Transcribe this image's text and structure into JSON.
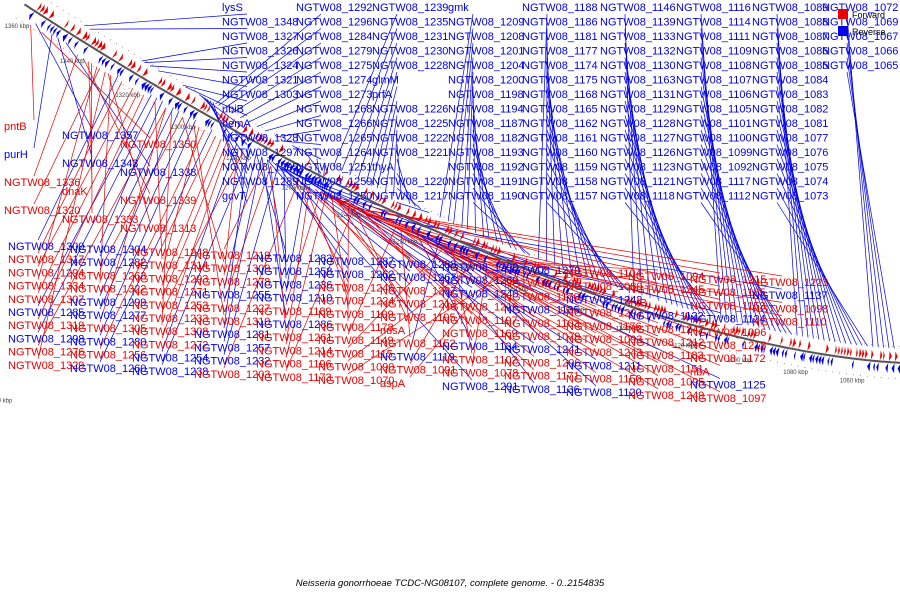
{
  "caption": "Neisseria gonorrhoeae TCDC-NG08107, complete genome. - 0..2154835",
  "legend": {
    "forward_label": "Forward",
    "reverse_label": "Reverse",
    "forward_color": "#e80000",
    "reverse_color": "#0000e8"
  },
  "colors": {
    "forward": "#e80000",
    "reverse": "#0000e8",
    "backbone": "#555555"
  },
  "map_range_kbp": [
    1040,
    1360
  ],
  "ticks": [
    "1360 kbp",
    "1340 kbp",
    "1320 kbp",
    "1300 kbp",
    "1280 kbp",
    "1260 kbp",
    "1240 kbp",
    "1220 kbp",
    "1200 kbp",
    "1180 kbp",
    "1160 kbp",
    "1140 kbp",
    "1120 kbp",
    "1100 kbp",
    "1080 kbp",
    "1060 kbp",
    "1040 kbp"
  ],
  "reverse_labels": [
    {
      "t": "lysS",
      "kbp": 1343
    },
    {
      "t": "NGTW08_1348",
      "kbp": 1341
    },
    {
      "t": "NGTW08_1327",
      "kbp": 1322
    },
    {
      "t": "NGTW08_1326",
      "kbp": 1321
    },
    {
      "t": "NGTW08_1324",
      "kbp": 1319
    },
    {
      "t": "NGTW08_1321",
      "kbp": 1316
    },
    {
      "t": "NGTW08_1303",
      "kbp": 1307
    },
    {
      "t": "ubiB",
      "kbp": 1306
    },
    {
      "t": "hemA",
      "kbp": 1301
    },
    {
      "t": "NGTW08_1328",
      "kbp": 1300
    },
    {
      "t": "NGTW08_1297",
      "kbp": 1299
    },
    {
      "t": "NGTW08_1295",
      "kbp": 1298
    },
    {
      "t": "NGTW08_1289",
      "kbp": 1297
    },
    {
      "t": "gcvT",
      "kbp": 1296
    },
    {
      "t": "NGTW08_1292",
      "kbp": 1295
    },
    {
      "t": "NGTW08_1296",
      "kbp": 1294
    },
    {
      "t": "NGTW08_1284",
      "kbp": 1292
    },
    {
      "t": "NGTW08_1279",
      "kbp": 1289
    },
    {
      "t": "NGTW08_1275",
      "kbp": 1286
    },
    {
      "t": "NGTW08_1274",
      "kbp": 1283
    },
    {
      "t": "NGTW08_1273",
      "kbp": 1280
    },
    {
      "t": "NGTW08_1268",
      "kbp": 1277
    },
    {
      "t": "NGTW08_1266",
      "kbp": 1273
    },
    {
      "t": "NGTW08_1265",
      "kbp": 1270
    },
    {
      "t": "NGTW08_1264",
      "kbp": 1267
    },
    {
      "t": "NGTW08_1251",
      "kbp": 1262
    },
    {
      "t": "NGTW08_1259",
      "kbp": 1258
    },
    {
      "t": "NGTW08_1250",
      "kbp": 1255
    },
    {
      "t": "NGTW08_1239",
      "kbp": 1252
    },
    {
      "t": "NGTW08_1235",
      "kbp": 1249
    },
    {
      "t": "NGTW08_1231",
      "kbp": 1246
    },
    {
      "t": "NGTW08_1230",
      "kbp": 1243
    },
    {
      "t": "NGTW08_1228",
      "kbp": 1240
    },
    {
      "t": "glmM",
      "kbp": 1238
    },
    {
      "t": "prfA",
      "kbp": 1236
    },
    {
      "t": "NGTW08_1226",
      "kbp": 1233
    },
    {
      "t": "NGTW08_1225",
      "kbp": 1230
    },
    {
      "t": "NGTW08_1222",
      "kbp": 1227
    },
    {
      "t": "NGTW08_1221",
      "kbp": 1224
    },
    {
      "t": "thyA",
      "kbp": 1222
    },
    {
      "t": "NGTW08_1220",
      "kbp": 1220
    },
    {
      "t": "NGTW08_1217",
      "kbp": 1217
    },
    {
      "t": "gmk",
      "kbp": 1213
    },
    {
      "t": "NGTW08_1209",
      "kbp": 1210
    },
    {
      "t": "NGTW08_1208",
      "kbp": 1208
    },
    {
      "t": "NGTW08_1201",
      "kbp": 1205
    },
    {
      "t": "NGTW08_1204",
      "kbp": 1203
    },
    {
      "t": "NGTW08_1200",
      "kbp": 1200
    },
    {
      "t": "NGTW08_1198",
      "kbp": 1197
    },
    {
      "t": "NGTW08_1194",
      "kbp": 1195
    },
    {
      "t": "NGTW08_1187",
      "kbp": 1192
    },
    {
      "t": "NGTW08_1182",
      "kbp": 1190
    },
    {
      "t": "NGTW08_1193",
      "kbp": 1187
    },
    {
      "t": "NGTW08_1192",
      "kbp": 1185
    },
    {
      "t": "NGTW08_1191",
      "kbp": 1182
    },
    {
      "t": "NGTW08_1190",
      "kbp": 1180
    },
    {
      "t": "NGTW08_1188",
      "kbp": 1177
    },
    {
      "t": "NGTW08_1186",
      "kbp": 1174
    },
    {
      "t": "NGTW08_1181",
      "kbp": 1171
    },
    {
      "t": "NGTW08_1177",
      "kbp": 1168
    },
    {
      "t": "NGTW08_1174",
      "kbp": 1165
    },
    {
      "t": "NGTW08_1175",
      "kbp": 1162
    },
    {
      "t": "NGTW08_1168",
      "kbp": 1159
    },
    {
      "t": "NGTW08_1165",
      "kbp": 1157
    },
    {
      "t": "NGTW08_1162",
      "kbp": 1155
    },
    {
      "t": "NGTW08_1161",
      "kbp": 1152
    },
    {
      "t": "NGTW08_1160",
      "kbp": 1150
    },
    {
      "t": "NGTW08_1159",
      "kbp": 1148
    },
    {
      "t": "NGTW08_1158",
      "kbp": 1146
    },
    {
      "t": "NGTW08_1157",
      "kbp": 1144
    },
    {
      "t": "NGTW08_1146",
      "kbp": 1142
    },
    {
      "t": "NGTW08_1139",
      "kbp": 1139
    },
    {
      "t": "NGTW08_1133",
      "kbp": 1136
    },
    {
      "t": "NGTW08_1132",
      "kbp": 1133
    },
    {
      "t": "NGTW08_1130",
      "kbp": 1130
    },
    {
      "t": "NGTW08_1163",
      "kbp": 1128
    },
    {
      "t": "NGTW08_1131",
      "kbp": 1126
    },
    {
      "t": "NGTW08_1129",
      "kbp": 1124
    },
    {
      "t": "NGTW08_1128",
      "kbp": 1122
    },
    {
      "t": "NGTW08_1127",
      "kbp": 1120
    },
    {
      "t": "NGTW08_1126",
      "kbp": 1118
    },
    {
      "t": "NGTW08_1123",
      "kbp": 1116
    },
    {
      "t": "NGTW08_1121",
      "kbp": 1114
    },
    {
      "t": "NGTW08_1118",
      "kbp": 1112
    },
    {
      "t": "NGTW08_1116",
      "kbp": 1110
    },
    {
      "t": "NGTW08_1114",
      "kbp": 1108
    },
    {
      "t": "NGTW08_1111",
      "kbp": 1106
    },
    {
      "t": "NGTW08_1109",
      "kbp": 1104
    },
    {
      "t": "NGTW08_1108",
      "kbp": 1102
    },
    {
      "t": "NGTW08_1107",
      "kbp": 1100
    },
    {
      "t": "NGTW08_1106",
      "kbp": 1098
    },
    {
      "t": "NGTW08_1105",
      "kbp": 1096
    },
    {
      "t": "NGTW08_1101",
      "kbp": 1094
    },
    {
      "t": "NGTW08_1100",
      "kbp": 1092
    },
    {
      "t": "NGTW08_1099",
      "kbp": 1090
    },
    {
      "t": "NGTW08_1092",
      "kbp": 1088
    },
    {
      "t": "NGTW08_1117",
      "kbp": 1086
    },
    {
      "t": "NGTW08_1112",
      "kbp": 1084
    },
    {
      "t": "NGTW08_1089",
      "kbp": 1082
    },
    {
      "t": "NGTW08_1088",
      "kbp": 1080
    },
    {
      "t": "NGTW08_1087",
      "kbp": 1078
    },
    {
      "t": "NGTW08_1086",
      "kbp": 1076
    },
    {
      "t": "NGTW08_1085",
      "kbp": 1074
    },
    {
      "t": "NGTW08_1084",
      "kbp": 1072
    },
    {
      "t": "NGTW08_1083",
      "kbp": 1070
    },
    {
      "t": "NGTW08_1082",
      "kbp": 1068
    },
    {
      "t": "NGTW08_1081",
      "kbp": 1066
    },
    {
      "t": "NGTW08_1077",
      "kbp": 1064
    },
    {
      "t": "NGTW08_1076",
      "kbp": 1062
    },
    {
      "t": "NGTW08_1075",
      "kbp": 1060
    },
    {
      "t": "NGTW08_1074",
      "kbp": 1058
    },
    {
      "t": "NGTW08_1073",
      "kbp": 1056
    },
    {
      "t": "NGTW08_1072",
      "kbp": 1054
    },
    {
      "t": "NGTW08_1069",
      "kbp": 1052
    },
    {
      "t": "NGTW08_1067",
      "kbp": 1050
    },
    {
      "t": "NGTW08_1066",
      "kbp": 1048
    },
    {
      "t": "NGTW08_1065",
      "kbp": 1046
    }
  ],
  "left_labels": [
    {
      "t": "pntB",
      "f": 1,
      "kbp": 1357
    },
    {
      "t": "NGTW08_1357",
      "f": 0,
      "kbp": 1356
    },
    {
      "t": "NGTW08_1350",
      "f": 1,
      "kbp": 1353
    },
    {
      "t": "purH",
      "f": 0,
      "kbp": 1350
    },
    {
      "t": "NGTW08_1343",
      "f": 0,
      "kbp": 1348
    },
    {
      "t": "NGTW08_1338",
      "f": 0,
      "kbp": 1345
    },
    {
      "t": "NGTW08_1336",
      "f": 1,
      "kbp": 1340
    },
    {
      "t": "dnaK",
      "f": 1,
      "kbp": 1336
    },
    {
      "t": "NGTW08_1339",
      "f": 1,
      "kbp": 1338
    },
    {
      "t": "NGTW08_1320",
      "f": 1,
      "kbp": 1332
    },
    {
      "t": "NGTW08_1333",
      "f": 1,
      "kbp": 1335
    },
    {
      "t": "NGTW08_1313",
      "f": 1,
      "kbp": 1329
    },
    {
      "t": "NGTW08_1300",
      "f": 0,
      "kbp": 1326
    },
    {
      "t": "NGTW08_1317",
      "f": 1,
      "kbp": 1324
    },
    {
      "t": "NGTW08_1294",
      "f": 1,
      "kbp": 1320
    },
    {
      "t": "NGTW08_1334",
      "f": 1,
      "kbp": 1333
    },
    {
      "t": "NGTW08_1307",
      "f": 1,
      "kbp": 1318
    },
    {
      "t": "NGTW08_1285",
      "f": 0,
      "kbp": 1314
    },
    {
      "t": "NGTW08_1319",
      "f": 1,
      "kbp": 1316
    },
    {
      "t": "NGTW08_1298",
      "f": 0,
      "kbp": 1312
    },
    {
      "t": "NGTW08_1276",
      "f": 1,
      "kbp": 1308
    },
    {
      "t": "NGTW08_1329",
      "f": 1,
      "kbp": 1330
    },
    {
      "t": "NGTW08_1304",
      "f": 0,
      "kbp": 1310
    },
    {
      "t": "NGTW08_1282",
      "f": 0,
      "kbp": 1306
    },
    {
      "t": "NGTW08_1263",
      "f": 1,
      "kbp": 1302
    },
    {
      "t": "NGTW08_1322",
      "f": 1,
      "kbp": 1328
    },
    {
      "t": "NGTW08_1299",
      "f": 0,
      "kbp": 1304
    },
    {
      "t": "NGTW08_1277",
      "f": 0,
      "kbp": 1300
    },
    {
      "t": "NGTW08_1305",
      "f": 1,
      "kbp": 1308
    },
    {
      "t": "NGTW08_1280",
      "f": 0,
      "kbp": 1298
    },
    {
      "t": "NGTW08_1256",
      "f": 1,
      "kbp": 1294
    },
    {
      "t": "NGTW08_1260",
      "f": 0,
      "kbp": 1292
    },
    {
      "t": "NGTW08_1248",
      "f": 1,
      "kbp": 1290
    },
    {
      "t": "NGTW08_1314",
      "f": 1,
      "kbp": 1312
    },
    {
      "t": "NGTW08_1293",
      "f": 1,
      "kbp": 1296
    },
    {
      "t": "NGTW08_1271",
      "f": 1,
      "kbp": 1288
    },
    {
      "t": "NGTW08_1253",
      "f": 1,
      "kbp": 1286
    },
    {
      "t": "NGTW08_1233",
      "f": 1,
      "kbp": 1280
    },
    {
      "t": "NGTW08_1308",
      "f": 1,
      "kbp": 1306
    },
    {
      "t": "NGTW08_1272",
      "f": 1,
      "kbp": 1285
    },
    {
      "t": "NGTW08_1254",
      "f": 0,
      "kbp": 1283
    },
    {
      "t": "NGTW08_1238",
      "f": 0,
      "kbp": 1278
    },
    {
      "t": "NGTW08_1219",
      "f": 1,
      "kbp": 1272
    },
    {
      "t": "NGTW08_1309",
      "f": 1,
      "kbp": 1302
    },
    {
      "t": "NGTW08_1278",
      "f": 1,
      "kbp": 1282
    },
    {
      "t": "NGTW08_1255",
      "f": 0,
      "kbp": 1276
    },
    {
      "t": "NGTW08_1227",
      "f": 1,
      "kbp": 1270
    },
    {
      "t": "NGTW08_1310",
      "f": 1,
      "kbp": 1298
    },
    {
      "t": "NGTW08_1281",
      "f": 0,
      "kbp": 1279
    },
    {
      "t": "NGTW08_1257",
      "f": 0,
      "kbp": 1274
    },
    {
      "t": "NGTW08_1232",
      "f": 0,
      "kbp": 1268
    },
    {
      "t": "NGTW08_1203",
      "f": 1,
      "kbp": 1260
    },
    {
      "t": "NGTW08_1283",
      "f": 0,
      "kbp": 1276
    },
    {
      "t": "NGTW08_1258",
      "f": 0,
      "kbp": 1272
    },
    {
      "t": "NGTW08_1236",
      "f": 0,
      "kbp": 1266
    },
    {
      "t": "NGTW08_1210",
      "f": 0,
      "kbp": 1258
    },
    {
      "t": "NGTW08_1189",
      "f": 1,
      "kbp": 1252
    },
    {
      "t": "NGTW08_1286",
      "f": 0,
      "kbp": 1274
    },
    {
      "t": "NGTW08_1261",
      "f": 1,
      "kbp": 1270
    },
    {
      "t": "NGTW08_1214",
      "f": 1,
      "kbp": 1256
    },
    {
      "t": "NGTW08_1196",
      "f": 1,
      "kbp": 1250
    },
    {
      "t": "NGTW08_1173",
      "f": 1,
      "kbp": 1240
    },
    {
      "t": "NGTW08_1287",
      "f": 0,
      "kbp": 1272
    },
    {
      "t": "NGTW08_1262",
      "f": 0,
      "kbp": 1268
    },
    {
      "t": "NGTW08_1246",
      "f": 1,
      "kbp": 1262
    },
    {
      "t": "NGTW08_1224",
      "f": 1,
      "kbp": 1258
    },
    {
      "t": "NGTW08_1199",
      "f": 1,
      "kbp": 1248
    },
    {
      "t": "NGTW08_1178",
      "f": 1,
      "kbp": 1242
    },
    {
      "t": "NGTW08_1149",
      "f": 1,
      "kbp": 1225
    },
    {
      "t": "NGTW08_1115",
      "f": 1,
      "kbp": 1208
    },
    {
      "t": "NGTW08_1090",
      "f": 1,
      "kbp": 1196
    },
    {
      "t": "NGTW08_1070",
      "f": 1,
      "kbp": 1186
    },
    {
      "t": "NGTW08_1288",
      "f": 0,
      "kbp": 1270
    },
    {
      "t": "NGTW08_1267",
      "f": 0,
      "kbp": 1266
    },
    {
      "t": "NGTW08_1237",
      "f": 1,
      "kbp": 1260
    },
    {
      "t": "NGTW08_1213",
      "f": 1,
      "kbp": 1254
    },
    {
      "t": "NGTW08_1195",
      "f": 1,
      "kbp": 1246
    },
    {
      "t": "nusA",
      "f": 1,
      "kbp": 1240
    },
    {
      "t": "NGTW08_1152",
      "f": 1,
      "kbp": 1223
    },
    {
      "t": "NGTW08_1119",
      "f": 0,
      "kbp": 1210
    },
    {
      "t": "NGTW08_1091",
      "f": 1,
      "kbp": 1198
    },
    {
      "t": "aspA",
      "f": 1,
      "kbp": 1188
    },
    {
      "t": "NGTW08_1290",
      "f": 0,
      "kbp": 1268
    },
    {
      "t": "NGTW08_1269",
      "f": 0,
      "kbp": 1264
    },
    {
      "t": "NGTW08_1240",
      "f": 0,
      "kbp": 1258
    },
    {
      "t": "NGTW08_1216",
      "f": 1,
      "kbp": 1252
    },
    {
      "t": "NGTW08_1197",
      "f": 1,
      "kbp": 1244
    },
    {
      "t": "NGTW08_1169",
      "f": 1,
      "kbp": 1236
    },
    {
      "t": "NGTW08_1134",
      "f": 0,
      "kbp": 1218
    },
    {
      "t": "NGTW08_1102",
      "f": 1,
      "kbp": 1204
    },
    {
      "t": "NGTW08_1078",
      "f": 1,
      "kbp": 1192
    },
    {
      "t": "NGTW08_1291",
      "f": 0,
      "kbp": 1266
    },
    {
      "t": "NGTW08_1270",
      "f": 0,
      "kbp": 1262
    },
    {
      "t": "NGTW08_1205",
      "f": 1,
      "kbp": 1250
    },
    {
      "t": "NGTW08_1170",
      "f": 1,
      "kbp": 1238
    },
    {
      "t": "NGTW08_1135",
      "f": 0,
      "kbp": 1220
    },
    {
      "t": "NGTW08_1103",
      "f": 1,
      "kbp": 1206
    },
    {
      "t": "NGTW08_1079",
      "f": 1,
      "kbp": 1194
    },
    {
      "t": "NGTW08_1241",
      "f": 0,
      "kbp": 1256
    },
    {
      "t": "NGTW08_1206",
      "f": 1,
      "kbp": 1248
    },
    {
      "t": "NGTW08_1171",
      "f": 1,
      "kbp": 1236
    },
    {
      "t": "NGTW08_1136",
      "f": 0,
      "kbp": 1216
    },
    {
      "t": "NGTW08_1104",
      "f": 1,
      "kbp": 1202
    },
    {
      "t": "NGTW08_1080",
      "f": 1,
      "kbp": 1190
    },
    {
      "t": "NGTW08_1242",
      "f": 0,
      "kbp": 1254
    },
    {
      "t": "NGTW08_1207",
      "f": 1,
      "kbp": 1246
    },
    {
      "t": "NGTW08_1176",
      "f": 1,
      "kbp": 1234
    },
    {
      "t": "NGTW08_1093",
      "f": 1,
      "kbp": 1196
    },
    {
      "t": "NGTW08_1243",
      "f": 1,
      "kbp": 1252
    },
    {
      "t": "NGTW08_1211",
      "f": 0,
      "kbp": 1244
    },
    {
      "t": "NGTW08_1150",
      "f": 1,
      "kbp": 1222
    },
    {
      "t": "NGTW08_1120",
      "f": 0,
      "kbp": 1212
    },
    {
      "t": "NGTW08_1094",
      "f": 1,
      "kbp": 1198
    },
    {
      "t": "NGTW08_1245",
      "f": 1,
      "kbp": 1250
    },
    {
      "t": "infB",
      "f": 1,
      "kbp": 1236
    },
    {
      "t": "NGTW08_1122",
      "f": 0,
      "kbp": 1214
    },
    {
      "t": "NGTW08_1247",
      "f": 1,
      "kbp": 1248
    },
    {
      "t": "NGTW08_1212",
      "f": 1,
      "kbp": 1242
    },
    {
      "t": "NGTW08_1183",
      "f": 1,
      "kbp": 1238
    },
    {
      "t": "NGTW08_1151",
      "f": 1,
      "kbp": 1224
    },
    {
      "t": "NGTW08_1095",
      "f": 1,
      "kbp": 1200
    },
    {
      "t": "NGTW08_1249",
      "f": 1,
      "kbp": 1246
    },
    {
      "t": "NGTW08_1215",
      "f": 1,
      "kbp": 1240
    },
    {
      "t": "NGTW08_1185",
      "f": 1,
      "kbp": 1236
    },
    {
      "t": "NGTW08_1153",
      "f": 1,
      "kbp": 1226
    },
    {
      "t": "NGTW08_1124",
      "f": 0,
      "kbp": 1216
    },
    {
      "t": "NGTW08_1096",
      "f": 1,
      "kbp": 1202
    },
    {
      "t": "NGTW08_1218",
      "f": 1,
      "kbp": 1238
    },
    {
      "t": "NGTW08_1172",
      "f": 1,
      "kbp": 1232
    },
    {
      "t": "ribA",
      "f": 1,
      "kbp": 1228
    },
    {
      "t": "NGTW08_1125",
      "f": 0,
      "kbp": 1218
    },
    {
      "t": "NGTW08_1097",
      "f": 1,
      "kbp": 1204
    },
    {
      "t": "NGTW08_1223",
      "f": 1,
      "kbp": 1240
    },
    {
      "t": "NGTW08_1137",
      "f": 0,
      "kbp": 1230
    },
    {
      "t": "NGTW08_1098",
      "f": 1,
      "kbp": 1206
    },
    {
      "t": "NGTW08_1110",
      "f": 1,
      "kbp": 1210
    }
  ]
}
